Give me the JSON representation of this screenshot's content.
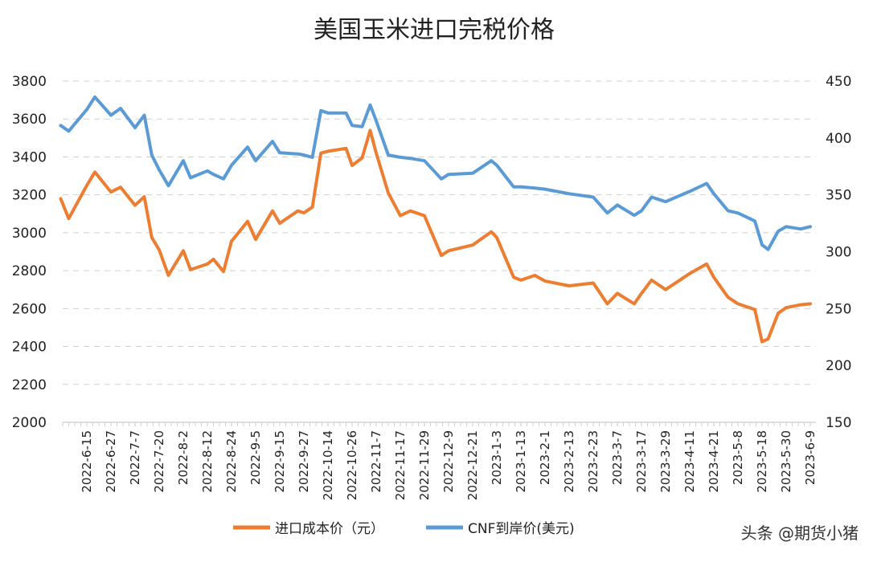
{
  "chart_data": {
    "type": "line",
    "title": "美国玉米进口完税价格",
    "y_left": {
      "ylim": [
        2000,
        3800
      ],
      "ticks": [
        "2000",
        "2200",
        "2400",
        "2600",
        "2800",
        "3000",
        "3200",
        "3400",
        "3600",
        "3800"
      ]
    },
    "y_right": {
      "ylim": [
        150,
        450
      ],
      "ticks": [
        "150",
        "200",
        "250",
        "300",
        "350",
        "400",
        "450"
      ]
    },
    "grid": true,
    "legend_placement": "bottom",
    "x_tick_labels": [
      "2022-6-15",
      "2022-6-27",
      "2022-7-7",
      "2022-7-20",
      "2022-8-2",
      "2022-8-12",
      "2022-8-24",
      "2022-9-5",
      "2022-9-15",
      "2022-9-27",
      "2022-10-14",
      "2022-10-26",
      "2022-11-7",
      "2022-11-17",
      "2022-11-29",
      "2022-12-9",
      "2022-12-21",
      "2023-1-3",
      "2023-1-13",
      "2023-2-1",
      "2023-2-13",
      "2023-2-23",
      "2023-3-7",
      "2023-3-17",
      "2023-3-29",
      "2023-4-11",
      "2023-4-21",
      "2023-5-8",
      "2023-5-18",
      "2023-5-30",
      "2023-6-9"
    ],
    "x": [
      "2022-6-2",
      "2022-6-6",
      "2022-6-15",
      "2022-6-19",
      "2022-6-27",
      "2022-7-1",
      "2022-7-7",
      "2022-7-12",
      "2022-7-16",
      "2022-7-20",
      "2022-7-25",
      "2022-8-2",
      "2022-8-5",
      "2022-8-12",
      "2022-8-15",
      "2022-8-20",
      "2022-8-24",
      "2022-9-1",
      "2022-9-5",
      "2022-9-12",
      "2022-9-15",
      "2022-9-24",
      "2022-9-27",
      "2022-10-3",
      "2022-10-9",
      "2022-10-14",
      "2022-10-23",
      "2022-10-26",
      "2022-10-31",
      "2022-11-4",
      "2022-11-7",
      "2022-11-12",
      "2022-11-17",
      "2022-11-22",
      "2022-11-29",
      "2022-12-6",
      "2022-12-9",
      "2022-12-21",
      "2022-12-31",
      "2023-1-3",
      "2023-1-10",
      "2023-1-13",
      "2023-1-24",
      "2023-2-1",
      "2023-2-13",
      "2023-2-23",
      "2023-3-2",
      "2023-3-7",
      "2023-3-14",
      "2023-3-17",
      "2023-3-22",
      "2023-3-29",
      "2023-4-11",
      "2023-4-18",
      "2023-4-21",
      "2023-5-1",
      "2023-5-8",
      "2023-5-15",
      "2023-5-18",
      "2023-5-21",
      "2023-5-26",
      "2023-5-30",
      "2023-6-5",
      "2023-6-9"
    ],
    "series": [
      {
        "name": "进口成本价（元）",
        "axis": "left",
        "color": "#ED7D31",
        "values": [
          3180,
          3075,
          3250,
          3320,
          3215,
          3240,
          3145,
          3190,
          2975,
          2910,
          2775,
          2905,
          2805,
          2835,
          2860,
          2795,
          2955,
          3060,
          2965,
          3115,
          3050,
          3115,
          3105,
          3135,
          3420,
          3430,
          3445,
          3355,
          3395,
          3540,
          3420,
          3210,
          3090,
          3115,
          3090,
          2880,
          2905,
          2935,
          3005,
          2975,
          2765,
          2750,
          2775,
          2745,
          2720,
          2735,
          2625,
          2680,
          2625,
          2680,
          2750,
          2700,
          2785,
          2835,
          2765,
          2660,
          2625,
          2595,
          2425,
          2440,
          2575,
          2605,
          2620,
          2625
        ]
      },
      {
        "name": "CNF到岸价(美元)",
        "axis": "right",
        "color": "#5B9BD5",
        "values": [
          411,
          406,
          425,
          436,
          420,
          426,
          409,
          420,
          385,
          372,
          358,
          380,
          365,
          371,
          368,
          364,
          376,
          392,
          380,
          397,
          387,
          386,
          385,
          383,
          424,
          422,
          422,
          411,
          410,
          429,
          415,
          385,
          383,
          382,
          380,
          364,
          368,
          369,
          380,
          376,
          357,
          357,
          356,
          355,
          351,
          348,
          334,
          341,
          332,
          336,
          348,
          344,
          353,
          360,
          351,
          336,
          334,
          327,
          306,
          302,
          318,
          322,
          320,
          322
        ]
      }
    ]
  },
  "legend": {
    "items": [
      "进口成本价（元）",
      "CNF到岸价(美元)"
    ]
  },
  "watermark": "头条 @期货小猪"
}
